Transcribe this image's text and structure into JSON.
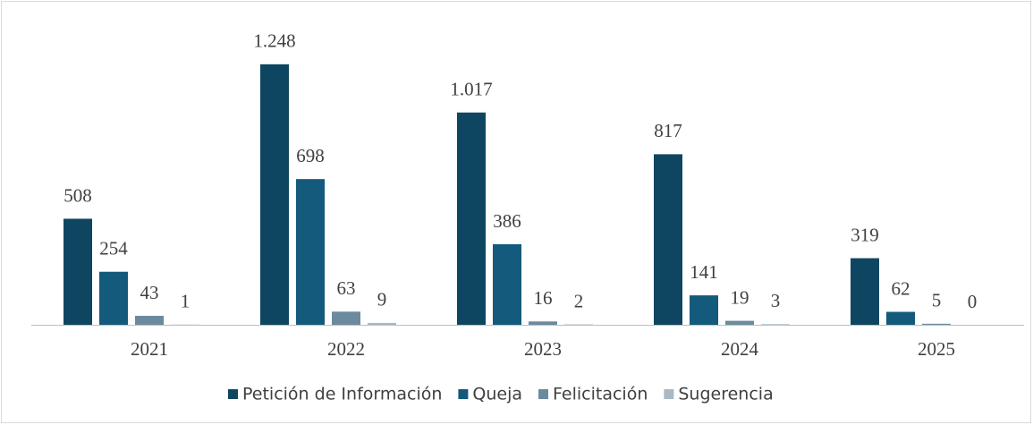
{
  "chart_data": {
    "type": "bar",
    "categories": [
      "2021",
      "2022",
      "2023",
      "2024",
      "2025"
    ],
    "series": [
      {
        "name": "Petición de Información",
        "color": "#0e4662",
        "values": [
          508,
          1248,
          1017,
          817,
          319
        ],
        "value_labels": [
          "508",
          "1.248",
          "1.017",
          "817",
          "319"
        ]
      },
      {
        "name": "Queja",
        "color": "#135a7c",
        "values": [
          254,
          698,
          386,
          141,
          62
        ]
      },
      {
        "name": "Felicitación",
        "color": "#6b8a9e",
        "values": [
          43,
          63,
          16,
          19,
          5
        ]
      },
      {
        "name": "Sugerencia",
        "color": "#a9b8c4",
        "values": [
          1,
          9,
          2,
          3,
          0
        ]
      }
    ]
  }
}
